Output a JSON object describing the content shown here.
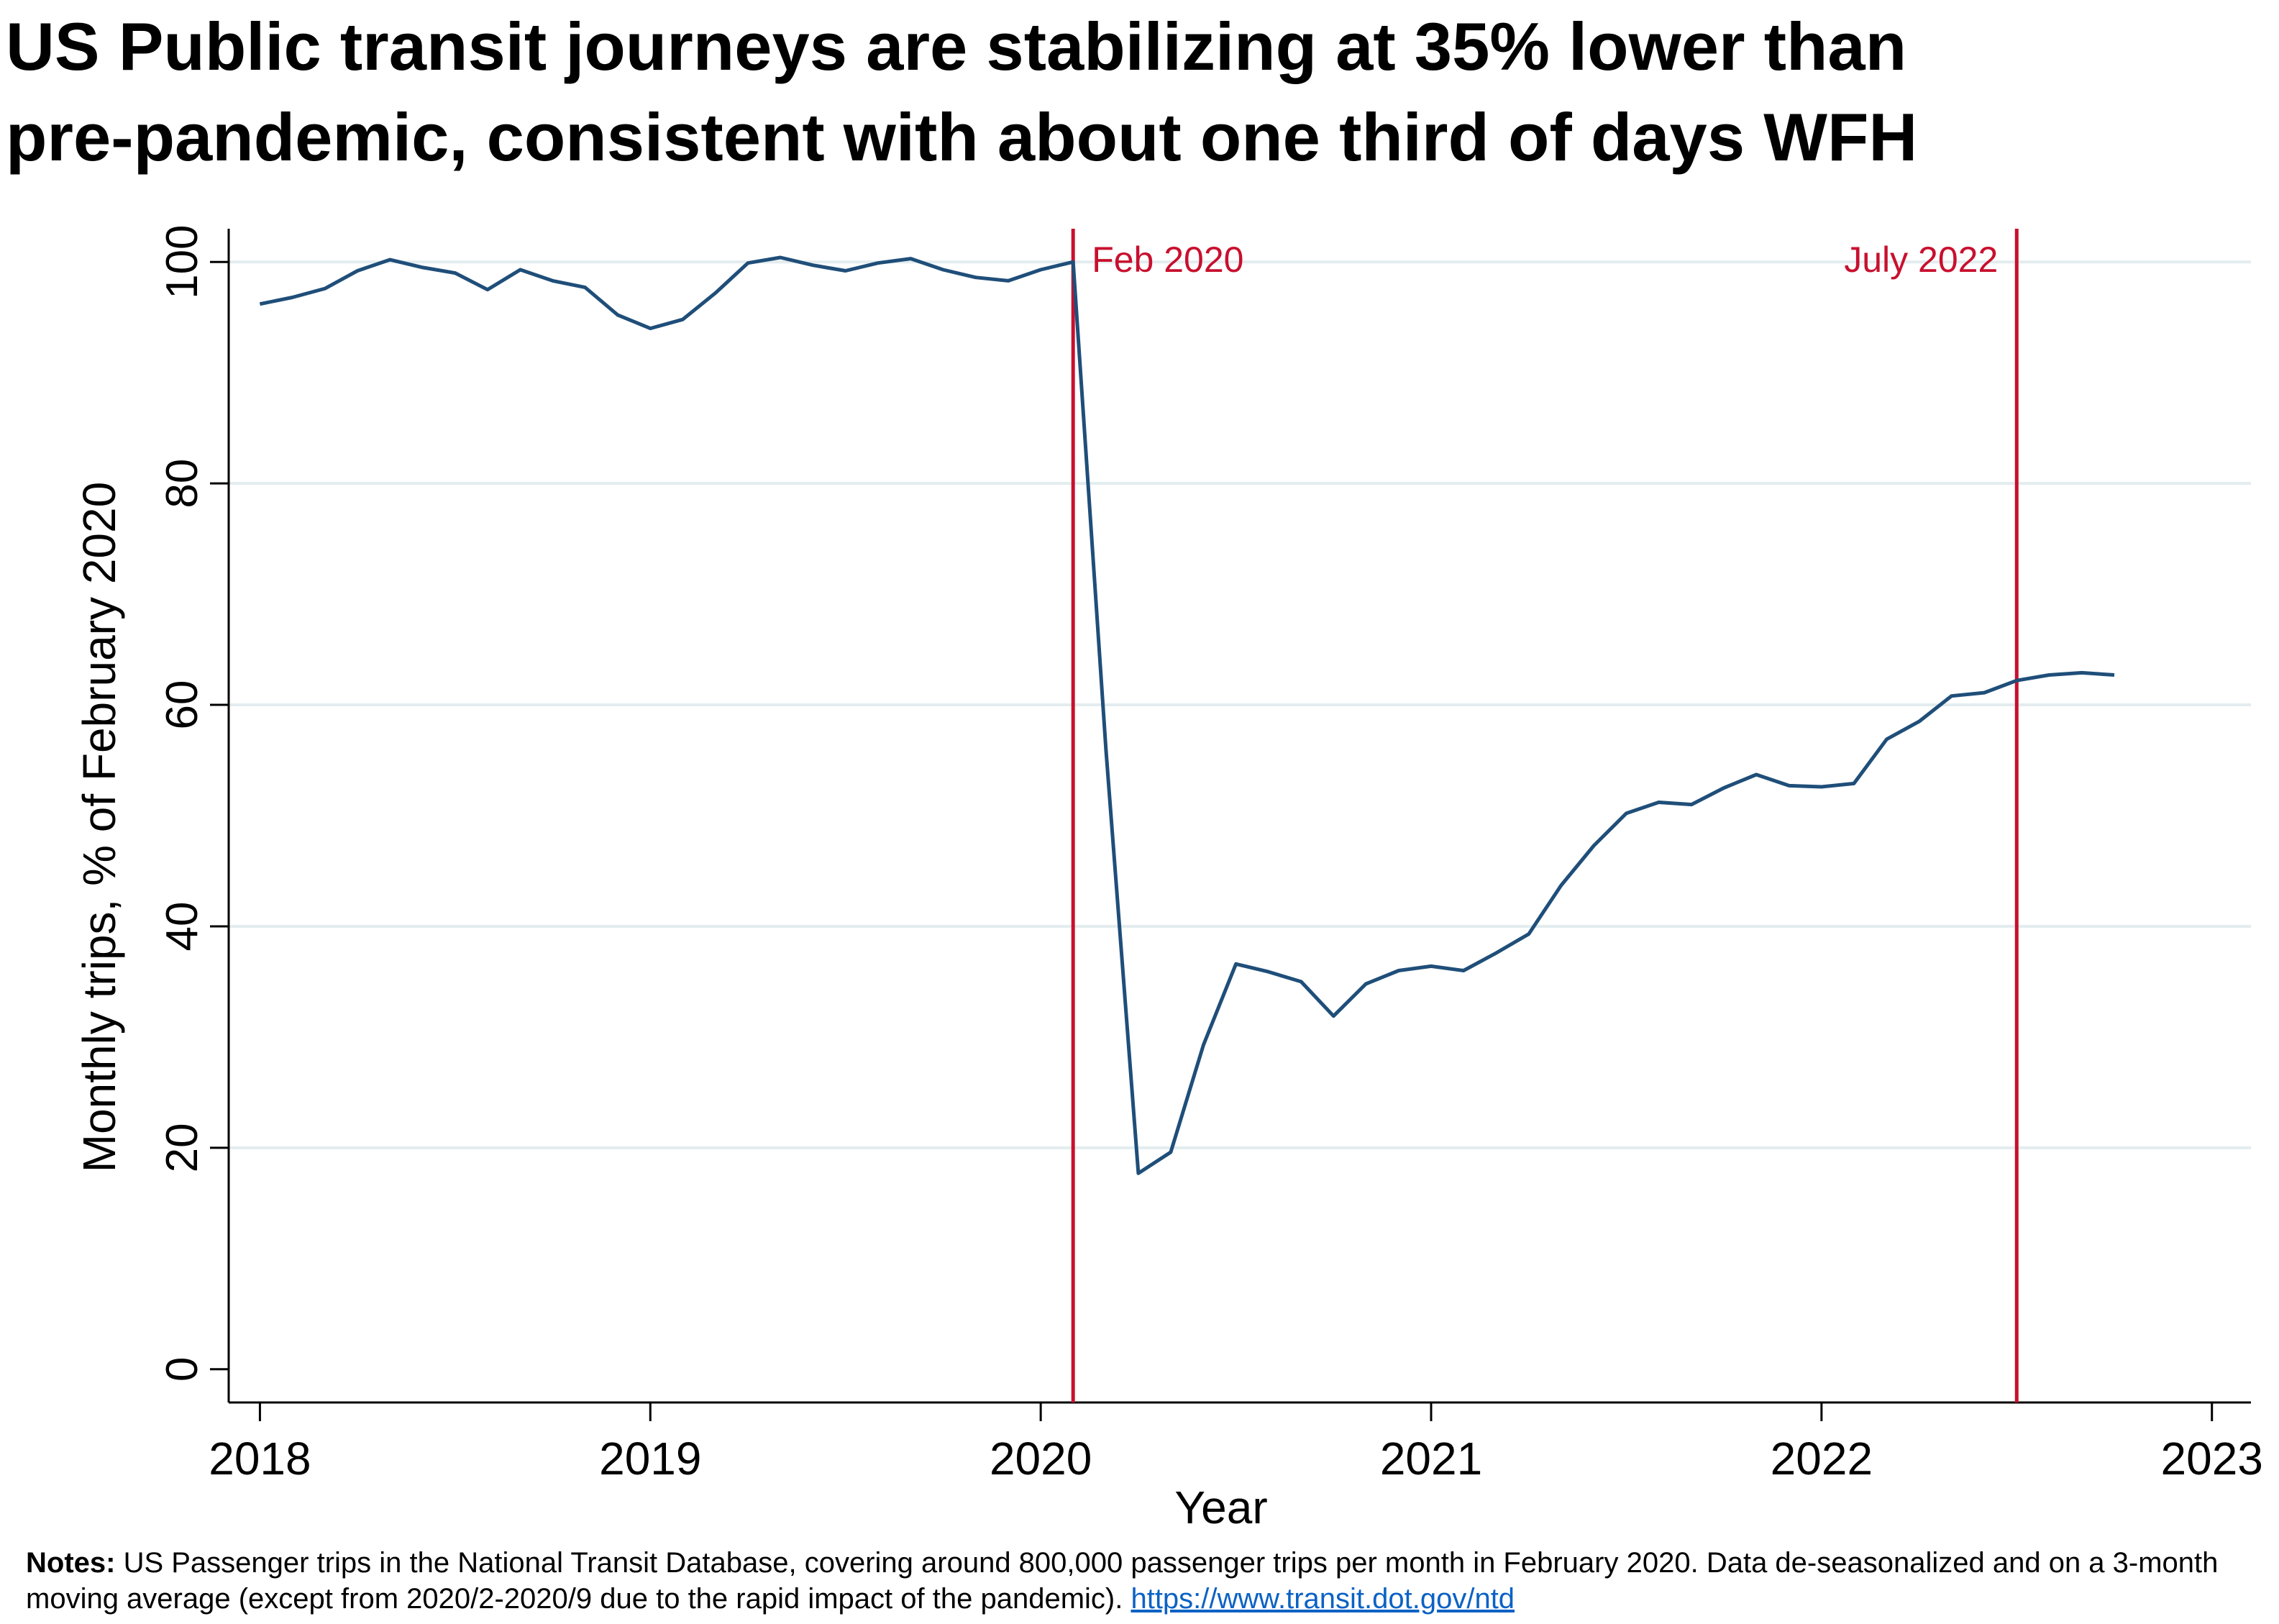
{
  "title_line1": "US Public transit journeys are stabilizing at 35% lower than",
  "title_line2": "pre-pandemic, consistent with about one third of days WFH",
  "chart_data": {
    "type": "line",
    "xlabel": "Year",
    "ylabel": "Monthly trips, % of February 2020",
    "xlim": [
      2017.92,
      2023.1
    ],
    "ylim": [
      -3,
      103
    ],
    "xticks": [
      2018,
      2019,
      2020,
      2021,
      2022,
      2023
    ],
    "xtick_labels": [
      "2018",
      "2019",
      "2020",
      "2021",
      "2022",
      "2023"
    ],
    "yticks": [
      0,
      20,
      40,
      60,
      80,
      100
    ],
    "ytick_labels": [
      "0",
      "20",
      "40",
      "60",
      "80",
      "100"
    ],
    "grid": "horizontal",
    "line_color": "#1f4e79",
    "vline_color": "#c8102e",
    "vlines": [
      {
        "x": 2020.083,
        "label": "Feb 2020",
        "label_side": "right"
      },
      {
        "x": 2022.5,
        "label": "July 2022",
        "label_side": "left"
      }
    ],
    "series": [
      {
        "x": [
          2018.0,
          2018.083,
          2018.167,
          2018.25,
          2018.333,
          2018.417,
          2018.5,
          2018.583,
          2018.667,
          2018.75,
          2018.833,
          2018.917,
          2019.0,
          2019.083,
          2019.167,
          2019.25,
          2019.333,
          2019.417,
          2019.5,
          2019.583,
          2019.667,
          2019.75,
          2019.833,
          2019.917,
          2020.0,
          2020.083,
          2020.167,
          2020.25,
          2020.333,
          2020.417,
          2020.5,
          2020.583,
          2020.667,
          2020.75,
          2020.833,
          2020.917,
          2021.0,
          2021.083,
          2021.167,
          2021.25,
          2021.333,
          2021.417,
          2021.5,
          2021.583,
          2021.667,
          2021.75,
          2021.833,
          2021.917,
          2022.0,
          2022.083,
          2022.167,
          2022.25,
          2022.333,
          2022.417,
          2022.5,
          2022.583,
          2022.667,
          2022.75
        ],
        "values": [
          96.2,
          96.8,
          97.6,
          99.2,
          100.2,
          99.5,
          99.0,
          97.5,
          99.3,
          98.3,
          97.7,
          95.2,
          94.0,
          94.8,
          97.2,
          99.9,
          100.4,
          99.7,
          99.2,
          99.9,
          100.3,
          99.3,
          98.6,
          98.3,
          99.3,
          100.0,
          56.0,
          17.7,
          19.6,
          29.3,
          36.6,
          35.9,
          35.0,
          31.9,
          34.8,
          36.0,
          36.4,
          36.0,
          37.6,
          39.3,
          43.7,
          47.3,
          50.2,
          51.2,
          51.0,
          52.5,
          53.7,
          52.7,
          52.6,
          52.9,
          56.9,
          58.5,
          60.8,
          61.1,
          62.2,
          62.7,
          62.9,
          62.7
        ]
      }
    ]
  },
  "notes": {
    "label": "Notes:",
    "text": " US Passenger trips in the National Transit Database, covering around 800,000 passenger trips per month in February 2020. Data de-seasonalized and on a 3-month moving average (except from 2020/2-2020/9 due to the rapid impact of the pandemic). ",
    "link": "https://www.transit.dot.gov/ntd"
  }
}
